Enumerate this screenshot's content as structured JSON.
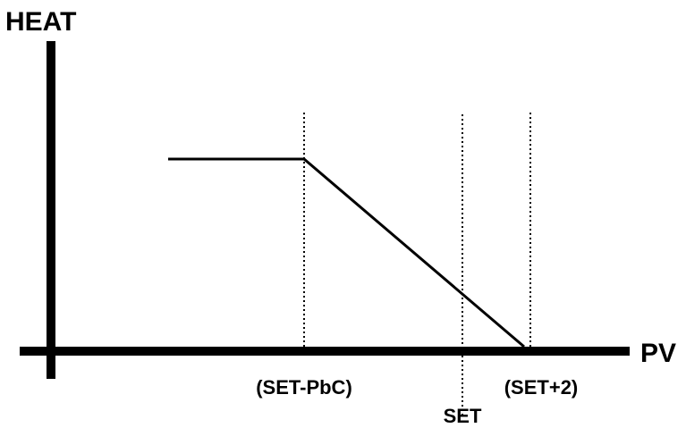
{
  "diagram": {
    "y_axis_label": "HEAT",
    "x_axis_label": "PV",
    "markers": {
      "set_minus_pbc": "(SET-PbC)",
      "set": "SET",
      "set_plus_2": "(SET+2)"
    }
  },
  "colors": {
    "stroke": "#000000",
    "background": "#ffffff"
  }
}
